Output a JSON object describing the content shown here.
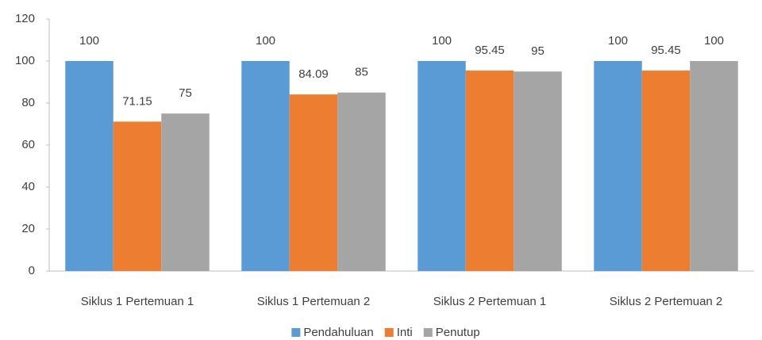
{
  "chart_data": {
    "type": "bar",
    "categories": [
      "Siklus 1 Pertemuan 1",
      "Siklus 1 Pertemuan 2",
      "Siklus 2 Pertemuan 1",
      "Siklus 2 Pertemuan 2"
    ],
    "series": [
      {
        "name": "Pendahuluan",
        "color": "#5b9bd5",
        "values": [
          100,
          100,
          100,
          100
        ]
      },
      {
        "name": "Inti",
        "color": "#ed7d31",
        "values": [
          71.15,
          84.09,
          95.45,
          95.45
        ]
      },
      {
        "name": "Penutup",
        "color": "#a5a5a5",
        "values": [
          75,
          85,
          95,
          100
        ]
      }
    ],
    "ylim": [
      0,
      120
    ],
    "yticks": [
      0,
      20,
      40,
      60,
      80,
      100,
      120
    ],
    "grid": false,
    "legend": "bottom"
  }
}
